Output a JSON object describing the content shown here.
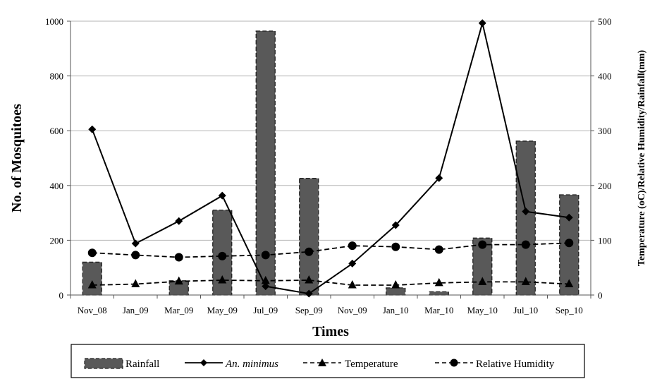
{
  "chart_data": {
    "type": "bar+line",
    "xlabel": "Times",
    "ylabel_left": "No. of Mosquitoes",
    "ylabel_right": "Temperature (oC)/Relative Humidity/Rainfall(mm)",
    "categories": [
      "Nov_08",
      "Jan_09",
      "Mar_09",
      "May_09",
      "Jul_09",
      "Sep_09",
      "Nov_09",
      "Jan_10",
      "Mar_10",
      "May_10",
      "Jul_10",
      "Sep_10"
    ],
    "y_left": {
      "min": 0,
      "max": 1000,
      "ticks": [
        0,
        200,
        400,
        600,
        800,
        1000
      ]
    },
    "y_right": {
      "min": 0,
      "max": 500,
      "ticks": [
        0,
        100,
        200,
        300,
        400,
        500
      ]
    },
    "grid": true,
    "legend_position": "bottom",
    "series": [
      {
        "name": "Rainfall",
        "kind": "bar",
        "axis": "right",
        "color": "#595959",
        "values": [
          60,
          0,
          26,
          155,
          482,
          213,
          0,
          13,
          6,
          104,
          281,
          183
        ]
      },
      {
        "name": "An. minimus",
        "kind": "line",
        "axis": "left",
        "marker": "diamond",
        "dash": "solid",
        "values": [
          605,
          188,
          270,
          363,
          32,
          5,
          115,
          255,
          427,
          993,
          305,
          283
        ]
      },
      {
        "name": "Temperature",
        "kind": "line",
        "axis": "right",
        "marker": "triangle",
        "dash": "dashed",
        "values": [
          18,
          20,
          25,
          27,
          26,
          27,
          18,
          18,
          22,
          24,
          24,
          20
        ]
      },
      {
        "name": "Relative Humidity",
        "kind": "line",
        "axis": "right",
        "marker": "circle",
        "dash": "dashed",
        "values": [
          77,
          73,
          69,
          71,
          73,
          79,
          90,
          88,
          83,
          92,
          92,
          95
        ]
      }
    ]
  }
}
